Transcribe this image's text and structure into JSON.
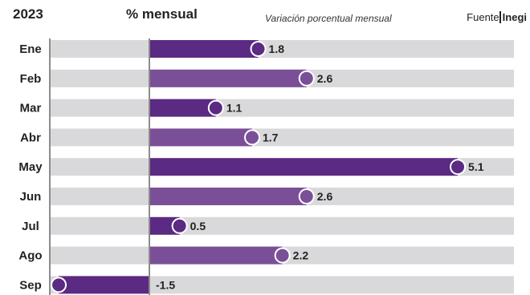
{
  "header": {
    "year": "2023",
    "unit": "% mensual",
    "subtitle": "Variación porcentual mensual",
    "source_prefix": "Fuente",
    "source_org": "Inegi"
  },
  "colors": {
    "bar_dark": "#5b2a82",
    "bar_light": "#7b4f98",
    "track": "#d9d9db",
    "axis": "#8c8c8c"
  },
  "chart_data": {
    "type": "bar",
    "orientation": "horizontal",
    "categories": [
      "Ene",
      "Feb",
      "Mar",
      "Abr",
      "May",
      "Jun",
      "Jul",
      "Ago",
      "Sep"
    ],
    "values": [
      1.8,
      2.6,
      1.1,
      1.7,
      5.1,
      2.6,
      0.5,
      2.2,
      -1.5
    ],
    "labels": [
      "1.8",
      "2.6",
      "1.1",
      "1.7",
      "5.1",
      "2.6",
      "0.5",
      "2.2",
      "-1.5"
    ],
    "title": "",
    "xlabel": "% mensual",
    "ylabel": "",
    "xlim": [
      -1.5,
      5.1
    ],
    "grid": false,
    "legend": "none"
  }
}
